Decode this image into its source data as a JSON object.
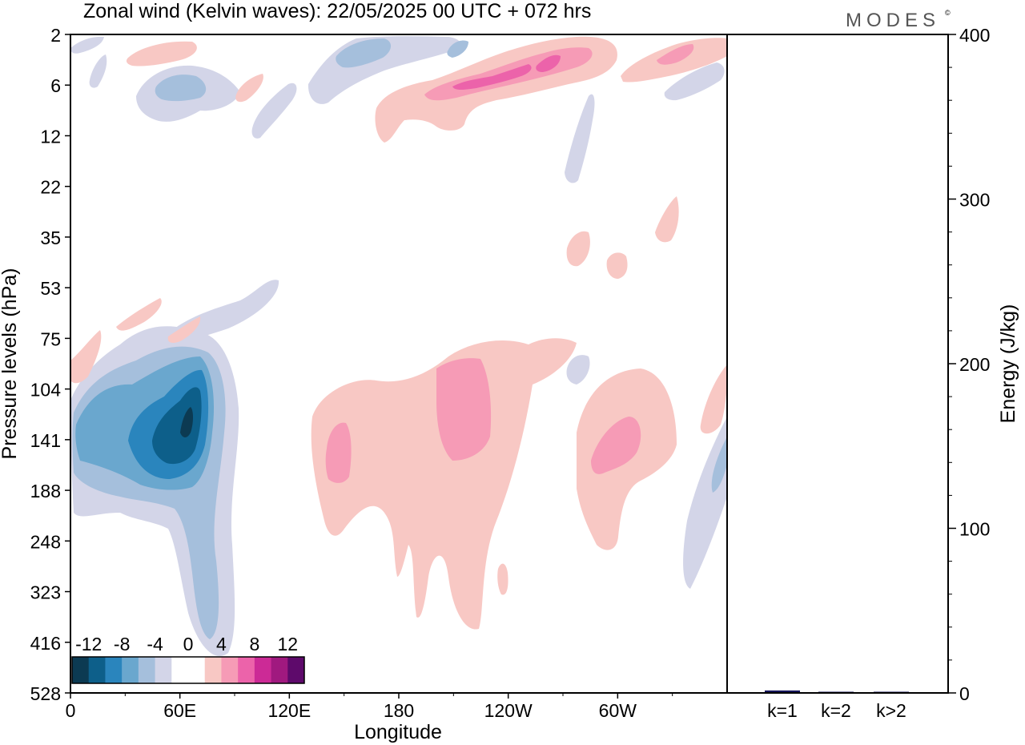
{
  "title": "Zonal wind (Kelvin waves):  22/05/2025  00 UTC  + 072 hrs",
  "brand": "MODES",
  "brand_mark": "©",
  "chart_data": [
    {
      "type": "heatmap",
      "title": "Zonal wind (Kelvin waves):  22/05/2025  00 UTC  + 072 hrs",
      "xlabel": "Longitude",
      "ylabel": "Pressure levels (hPa)",
      "x_ticks": [
        "0",
        "60E",
        "120E",
        "180",
        "120W",
        "60W"
      ],
      "x_tick_degrees": [
        0,
        60,
        120,
        180,
        240,
        300
      ],
      "xlim": [
        0,
        360
      ],
      "y_ticks": [
        "2",
        "6",
        "12",
        "22",
        "35",
        "53",
        "75",
        "104",
        "141",
        "188",
        "248",
        "323",
        "416",
        "528"
      ],
      "y_scale": "pressure levels, top to bottom",
      "colorbar": {
        "labels": [
          "-12",
          "-8",
          "-4",
          "0",
          "4",
          "8",
          "12"
        ],
        "levels": [
          -14,
          -12,
          -10,
          -8,
          -6,
          -4,
          -2,
          0,
          2,
          4,
          6,
          8,
          10,
          12,
          14
        ],
        "colors": [
          "#0c3a52",
          "#0d5f8a",
          "#2a85bd",
          "#6aa7ce",
          "#a5bfdc",
          "#d3d5e8",
          "#ffffff",
          "#ffffff",
          "#f8c8c4",
          "#f69bb6",
          "#ec63aa",
          "#cc2a96",
          "#a0197f",
          "#5e0a6b"
        ]
      },
      "features": [
        {
          "sign": "negative",
          "min_value": -12,
          "lon_center": 60,
          "level_center": "141"
        },
        {
          "sign": "positive",
          "max_value": 6,
          "lon_center": 205,
          "level_center": "141"
        },
        {
          "sign": "positive",
          "max_value": 6,
          "lon_center": 295,
          "level_center": "141"
        },
        {
          "sign": "positive",
          "max_value": 8,
          "lon_center": 250,
          "level_center": "6"
        },
        {
          "sign": "negative",
          "min_value": -6,
          "lon_center": 155,
          "level_center": "2"
        }
      ]
    },
    {
      "type": "bar",
      "ylabel": "Energy (J/kg)",
      "categories": [
        "k=1",
        "k=2",
        "k>2"
      ],
      "values": [
        1.5,
        0.3,
        0.6
      ],
      "ylim": [
        0,
        400
      ],
      "y_ticks": [
        "0",
        "100",
        "200",
        "300",
        "400"
      ],
      "bar_color": "#14145a"
    }
  ]
}
